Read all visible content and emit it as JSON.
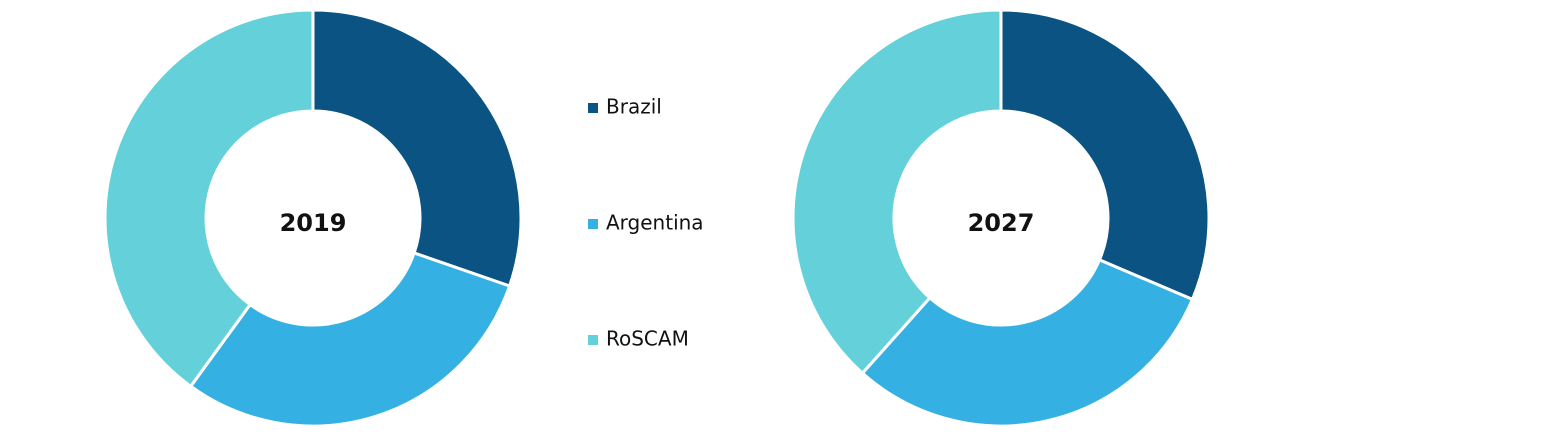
{
  "chart_data": [
    {
      "type": "pie",
      "title": "2019",
      "categories": [
        "Brazil",
        "Argentina",
        "RoSCAM"
      ],
      "values": [
        30.3,
        29.7,
        40.0
      ],
      "colors": [
        "#0a5382",
        "#35b0e2",
        "#64d0da"
      ],
      "donut": true
    },
    {
      "type": "pie",
      "title": "2027",
      "categories": [
        "Brazil",
        "Argentina",
        "RoSCAM"
      ],
      "values": [
        31.4,
        30.2,
        38.4
      ],
      "colors": [
        "#0a5382",
        "#35b0e2",
        "#64d0da"
      ],
      "donut": true
    }
  ]
}
